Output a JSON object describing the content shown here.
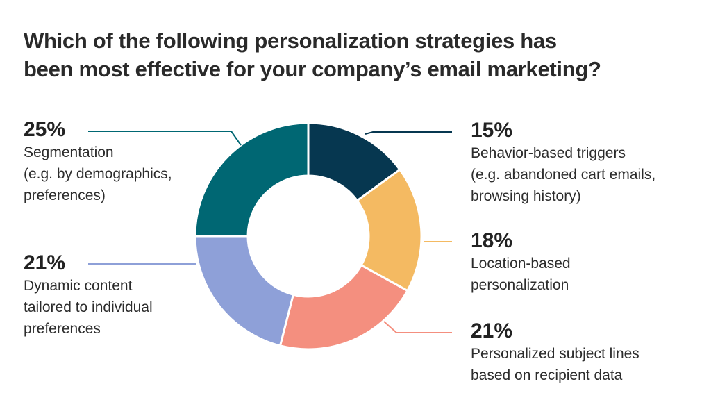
{
  "title": {
    "line1": "Which of the following personalization strategies has",
    "line2": "been most effective for your company’s email marketing?"
  },
  "labels": {
    "segmentation": {
      "pct": "25%",
      "line1": "Segmentation",
      "line2": "(e.g. by demographics,",
      "line3": "preferences)"
    },
    "dynamic": {
      "pct": "21%",
      "line1": "Dynamic content",
      "line2": "tailored to individual",
      "line3": "preferences"
    },
    "behavior": {
      "pct": "15%",
      "line1": "Behavior-based triggers",
      "line2": "(e.g. abandoned cart emails,",
      "line3": "browsing history)"
    },
    "location": {
      "pct": "18%",
      "line1": "Location-based",
      "line2": "personalization"
    },
    "subject": {
      "pct": "21%",
      "line1": "Personalized subject lines",
      "line2": "based on recipient data"
    }
  },
  "colors": {
    "behavior": "#063750",
    "location": "#f4ba62",
    "subject": "#f48f7f",
    "dynamic": "#8ea0d8",
    "segmentation": "#006773"
  },
  "chart_data": {
    "type": "pie",
    "donut": true,
    "title": "Which of the following personalization strategies has been most effective for your company’s email marketing?",
    "categories": [
      "Behavior-based triggers (e.g. abandoned cart emails, browsing history)",
      "Location-based personalization",
      "Personalized subject lines based on recipient data",
      "Dynamic content tailored to individual preferences",
      "Segmentation (e.g. by demographics, preferences)"
    ],
    "values": [
      15,
      18,
      21,
      21,
      25
    ],
    "unit": "%",
    "colors": [
      "#063750",
      "#f4ba62",
      "#f48f7f",
      "#8ea0d8",
      "#006773"
    ],
    "start_angle": "12 o'clock, clockwise",
    "legend": "callout labels"
  }
}
